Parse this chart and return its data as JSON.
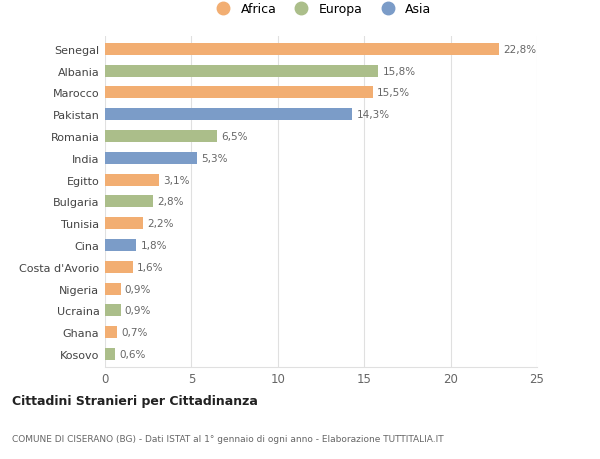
{
  "countries": [
    "Senegal",
    "Albania",
    "Marocco",
    "Pakistan",
    "Romania",
    "India",
    "Egitto",
    "Bulgaria",
    "Tunisia",
    "Cina",
    "Costa d'Avorio",
    "Nigeria",
    "Ucraina",
    "Ghana",
    "Kosovo"
  ],
  "values": [
    22.8,
    15.8,
    15.5,
    14.3,
    6.5,
    5.3,
    3.1,
    2.8,
    2.2,
    1.8,
    1.6,
    0.9,
    0.9,
    0.7,
    0.6
  ],
  "labels": [
    "22,8%",
    "15,8%",
    "15,5%",
    "14,3%",
    "6,5%",
    "5,3%",
    "3,1%",
    "2,8%",
    "2,2%",
    "1,8%",
    "1,6%",
    "0,9%",
    "0,9%",
    "0,7%",
    "0,6%"
  ],
  "continents": [
    "Africa",
    "Europa",
    "Africa",
    "Asia",
    "Europa",
    "Asia",
    "Africa",
    "Europa",
    "Africa",
    "Asia",
    "Africa",
    "Africa",
    "Europa",
    "Africa",
    "Europa"
  ],
  "colors": {
    "Africa": "#F2AE72",
    "Europa": "#ABBE8A",
    "Asia": "#7B9CC8"
  },
  "bg_color": "#ffffff",
  "grid_color": "#e0e0e0",
  "title1": "Cittadini Stranieri per Cittadinanza",
  "title2": "COMUNE DI CISERANO (BG) - Dati ISTAT al 1° gennaio di ogni anno - Elaborazione TUTTITALIA.IT",
  "xlim": [
    0,
    25
  ],
  "xticks": [
    0,
    5,
    10,
    15,
    20,
    25
  ]
}
